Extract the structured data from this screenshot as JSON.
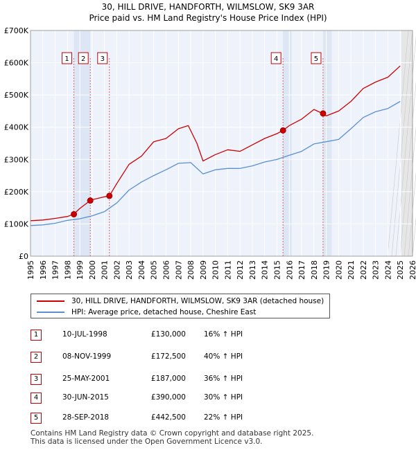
{
  "title": "30, HILL DRIVE, HANDFORTH, WILMSLOW, SK9 3AR",
  "subtitle": "Price paid vs. HM Land Registry's House Price Index (HPI)",
  "legend": {
    "property": "30, HILL DRIVE, HANDFORTH, WILMSLOW, SK9 3AR (detached house)",
    "hpi": "HPI: Average price, detached house, Cheshire East"
  },
  "sales": [
    {
      "num": "1",
      "date": "10-JUL-1998",
      "price": "£130,000",
      "hpi": "16% ↑ HPI"
    },
    {
      "num": "2",
      "date": "08-NOV-1999",
      "price": "£172,500",
      "hpi": "40% ↑ HPI"
    },
    {
      "num": "3",
      "date": "25-MAY-2001",
      "price": "£187,000",
      "hpi": "36% ↑ HPI"
    },
    {
      "num": "4",
      "date": "30-JUN-2015",
      "price": "£390,000",
      "hpi": "30% ↑ HPI"
    },
    {
      "num": "5",
      "date": "28-SEP-2018",
      "price": "£442,500",
      "hpi": "22% ↑ HPI"
    }
  ],
  "footer": {
    "line1": "Contains HM Land Registry data © Crown copyright and database right 2025.",
    "line2": "This data is licensed under the Open Government Licence v3.0."
  },
  "colors": {
    "property": "#cc0000",
    "hpi": "#5b8fd1",
    "shade": "#dde6f5",
    "grid": "#ffffff",
    "marker_line": "#dd6666"
  },
  "chart_data": {
    "type": "line",
    "xlim": [
      1995,
      2026
    ],
    "ylim": [
      0,
      700000
    ],
    "x_ticks": [
      "1995",
      "1996",
      "1997",
      "1998",
      "1999",
      "2000",
      "2001",
      "2002",
      "2003",
      "2004",
      "2005",
      "2006",
      "2007",
      "2008",
      "2009",
      "2010",
      "2011",
      "2012",
      "2013",
      "2014",
      "2015",
      "2016",
      "2017",
      "2018",
      "2019",
      "2020",
      "2021",
      "2022",
      "2023",
      "2024",
      "2025",
      "2026"
    ],
    "y_ticks": [
      {
        "value": 0,
        "label": "£0"
      },
      {
        "value": 100000,
        "label": "£100K"
      },
      {
        "value": 200000,
        "label": "£200K"
      },
      {
        "value": 300000,
        "label": "£300K"
      },
      {
        "value": 400000,
        "label": "£400K"
      },
      {
        "value": 500000,
        "label": "£500K"
      },
      {
        "value": 600000,
        "label": "£600K"
      },
      {
        "value": 700000,
        "label": "£700K"
      }
    ],
    "series": [
      {
        "name": "30, HILL DRIVE, HANDFORTH, WILMSLOW, SK9 3AR (detached house)",
        "x": [
          1995,
          1996,
          1997,
          1998,
          1998.5,
          1999,
          1999.85,
          2000,
          2001,
          2001.4,
          2002,
          2003,
          2004,
          2005,
          2006,
          2007,
          2007.8,
          2008.5,
          2009,
          2010,
          2011,
          2012,
          2013,
          2014,
          2015,
          2015.5,
          2016,
          2017,
          2018,
          2018.7,
          2019,
          2020,
          2021,
          2022,
          2023,
          2024,
          2025
        ],
        "y": [
          110000,
          112000,
          117000,
          123000,
          130000,
          148000,
          172500,
          175000,
          184000,
          187000,
          225000,
          285000,
          310000,
          355000,
          365000,
          395000,
          405000,
          350000,
          295000,
          315000,
          330000,
          325000,
          345000,
          365000,
          380000,
          390000,
          405000,
          425000,
          455000,
          442500,
          435000,
          450000,
          480000,
          520000,
          540000,
          555000,
          590000
        ]
      },
      {
        "name": "HPI: Average price, detached house, Cheshire East",
        "x": [
          1995,
          1996,
          1997,
          1998,
          1999,
          2000,
          2001,
          2002,
          2003,
          2004,
          2005,
          2006,
          2007,
          2008,
          2009,
          2010,
          2011,
          2012,
          2013,
          2014,
          2015,
          2016,
          2017,
          2018,
          2019,
          2020,
          2021,
          2022,
          2023,
          2024,
          2025
        ],
        "y": [
          95000,
          97000,
          102000,
          111000,
          116000,
          125000,
          138000,
          165000,
          205000,
          230000,
          250000,
          268000,
          288000,
          290000,
          255000,
          268000,
          272000,
          272000,
          280000,
          292000,
          300000,
          313000,
          325000,
          348000,
          355000,
          362000,
          395000,
          430000,
          448000,
          458000,
          480000
        ]
      }
    ],
    "sale_markers": [
      {
        "label": "1",
        "x": 1998.52,
        "y": 130000
      },
      {
        "label": "2",
        "x": 1999.85,
        "y": 172500
      },
      {
        "label": "3",
        "x": 2001.4,
        "y": 187000
      },
      {
        "label": "4",
        "x": 2015.49,
        "y": 390000
      },
      {
        "label": "5",
        "x": 2018.74,
        "y": 442500
      }
    ]
  }
}
